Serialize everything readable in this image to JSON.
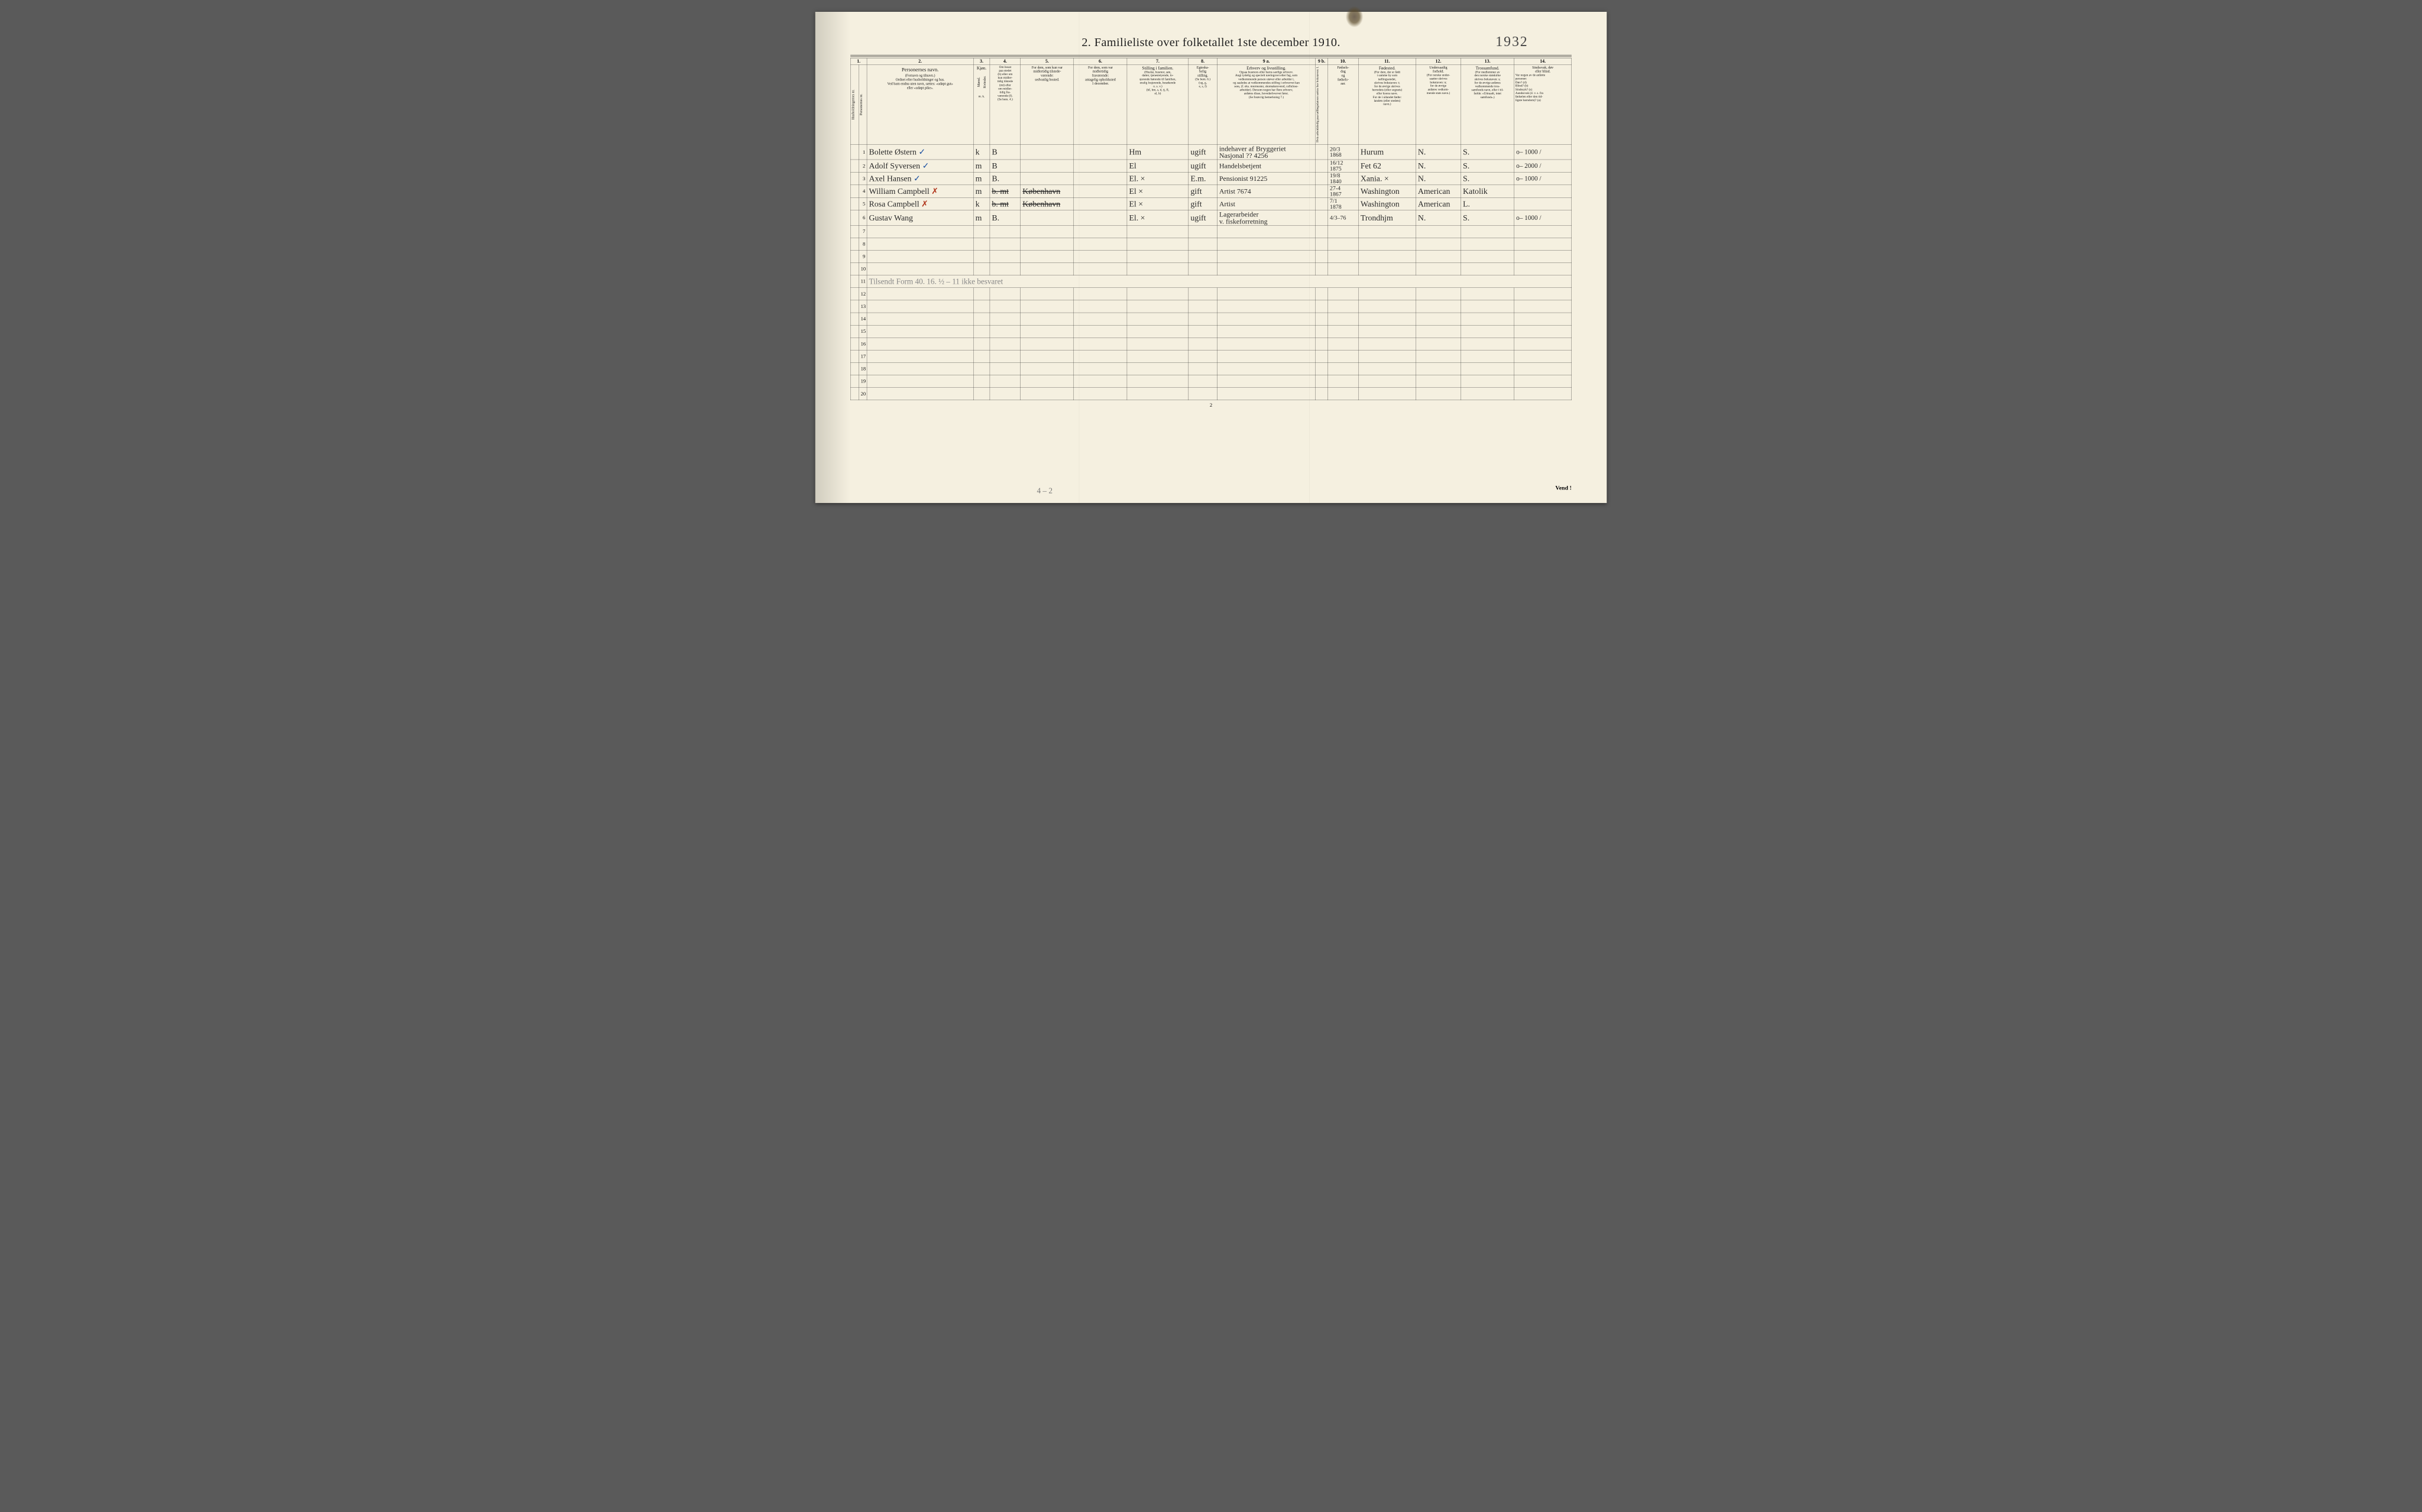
{
  "title": "2.  Familieliste over folketallet 1ste december 1910.",
  "handwritten_year": "1932",
  "page_number": "2",
  "vend": "Vend !",
  "bottom_pencil": "4 – 2",
  "column_numbers": [
    "1.",
    "",
    "2.",
    "3.",
    "4.",
    "5.",
    "6.",
    "7.",
    "8.",
    "9 a.",
    "9 b.",
    "10.",
    "11.",
    "12.",
    "13.",
    "14."
  ],
  "headers": {
    "c1a": "Husholdningernes nr.",
    "c1b": "Personernes nr.",
    "c2_title": "Personernes navn.",
    "c2_sub": "(Fornavn og tilnavn.)\nOrdnet efter husholdninger og hus.\nVed barn endnu uten navn, sættes: «udøpt gut»\neller «udøpt pike».",
    "c3_title": "Kjøn.",
    "c3_m": "Mænd.",
    "c3_k": "Kvinder.",
    "c3_sub": "m.  k.",
    "c4": "Om bosat\npaa stedet\n(b) eller om\nkun midler-\ntidig tilstede\n(mt) eller\nom midler-\ntidig fra-\nværende (f).\n(Se bem. 4.)",
    "c5": "For dem, som kun var\nmidlertidig tilstede-\nværende:\nsedvanlig bosted.",
    "c6": "For dem, som var\nmidlertidig\nfraværende:\nantagelig opholdssted\n1 december.",
    "c7_title": "Stilling i familien.",
    "c7_sub": "(Husfar, husmor, søn,\ndatter, tjenestetyende, lo-\nsjerende hørende til familien,\nenslig losjerende, besøkende\no. s. v.)\n(hf, hm, s, d, tj, fl,\nel, b)",
    "c8_title": "Egteska-\nbelig\nstilling.",
    "c8_sub": "(Se bem. 6.)\n(ug, g,\ne, s, f)",
    "c9a_title": "Erhverv og livsstilling.",
    "c9a_sub": "Ogsaa husmors eller barns særlige erhverv.\nAngi tydelig og specielt næringsvei eller fag, som\nvedkommende person utøver eller arbeider i,\nog saaledes at vedkommendes stilling i erhvervet kan\nsees, (f. eks. murmester, skomakersvend, cellulose-\narbeider). Dersom nogen har flere erhverv,\nanføres disse, hovederhvervet først.\n(Se forøvrig bemerkning 7.)",
    "c9b": "Hvis arbeidsledig\npaa tællingsdatoen sættes\nher bokstaven: l.",
    "c10": "Fødsels-\ndag\nog\nfødsels-\naar.",
    "c11_title": "Fødested.",
    "c11_sub": "(For dem, der er født\ni samme by som\ntællingsstedet,\nskrives bokstaven: t;\nfor de øvrige skrives\nherredets (eller sognets)\neller byens navn.\nFor de i utlandet fødte:\nlandets (eller stedets)\nnavn.)",
    "c12_title": "Undersaatlig\nforhold.",
    "c12_sub": "(For norske under-\nsaatter skrives\nbokstaven: n;\nfor de øvrige\nanføres vedkom-\nmende stats navn.)",
    "c13_title": "Trossamfund.",
    "c13_sub": "(For medlemmer av\nden norske statskirke\nskrives bokstaven: s;\nfor de øvrige anføres\nvedkommende tros-\nsamfunds navn, eller i til-\nfælde: «Uttraadt, intet\nsamfund».)",
    "c14_title": "Sindssvak, døv\neller blind.",
    "c14_sub": "Var nogen av de anførte\npersoner:\nDøv?       (d)\nBlind?     (b)\nSindssyk?  (s)\nAandssvak (d. v. s. fra\nfødselen eller den tid-\nligste barndom)?  (a)"
  },
  "rows": [
    {
      "n": "1",
      "name": "Bolette Østern",
      "mark": "✓",
      "sex": "k",
      "stat": "B",
      "c5": "",
      "c6": "",
      "c7": "Hm",
      "c8": "ugift",
      "c9": "indehaver af Bryggeriet\nNasjonal ??   4256",
      "c10": "20/3\n1868",
      "c11": "Hurum",
      "c12": "N.",
      "c13": "S.",
      "c14": "o–  1000 /"
    },
    {
      "n": "2",
      "name": "Adolf Syversen",
      "mark": "✓",
      "sex": "m",
      "stat": "B",
      "c5": "",
      "c6": "",
      "c7": "El",
      "c8": "ugift",
      "c9": "Handelsbetjent",
      "c10": "16/12\n1875",
      "c11": "Fet  62",
      "c12": "N.",
      "c13": "S.",
      "c14": "o– 2000  /"
    },
    {
      "n": "3",
      "name": "Axel Hansen",
      "mark": "✓",
      "sex": "m",
      "stat": "B.",
      "c5": "",
      "c6": "",
      "c7": "El. ×",
      "c8": "E.m.",
      "c9": "Pensionist    91225",
      "c10": "19/8\n1840",
      "c11": "Xania. ×",
      "c12": "N.",
      "c13": "S.",
      "c14": "o– 1000  /"
    },
    {
      "n": "4",
      "name": "William Campbell",
      "mark": "✗",
      "sex": "m",
      "stat": "b.  mt",
      "c5": "København",
      "c6": "",
      "c7": "El ×",
      "c8": "gift",
      "c9": "Artist      7674",
      "c10": "27-4\n1867",
      "c11": "Washington",
      "c12": "American",
      "c13": "Katolik",
      "c14": ""
    },
    {
      "n": "5",
      "name": "Rosa Campbell",
      "mark": "✗",
      "sex": "k",
      "stat": "b.  mt",
      "c5": "København",
      "c6": "",
      "c7": "El ×",
      "c8": "gift",
      "c9": "Artist",
      "c10": "7/1\n1878",
      "c11": "Washington",
      "c12": "American",
      "c13": "L.",
      "c14": ""
    },
    {
      "n": "6",
      "name": "Gustav   Wang",
      "mark": "",
      "sex": "m",
      "stat": "B.",
      "c5": "",
      "c6": "",
      "c7": "El. ×",
      "c8": "ugift",
      "c9": "Lagerarbeider\nv. fiskeforretning",
      "c10": "4/3–76",
      "c11": "Trondhjm",
      "c12": "N.",
      "c13": "S.",
      "c14": "o– 1000  /"
    }
  ],
  "scribble_row": "Tilsendt Form 40. 16.  ½ – 11  ikke besvaret",
  "empty_rows": [
    "7",
    "8",
    "9",
    "10",
    "11",
    "12",
    "13",
    "14",
    "15",
    "16",
    "17",
    "18",
    "19",
    "20"
  ]
}
